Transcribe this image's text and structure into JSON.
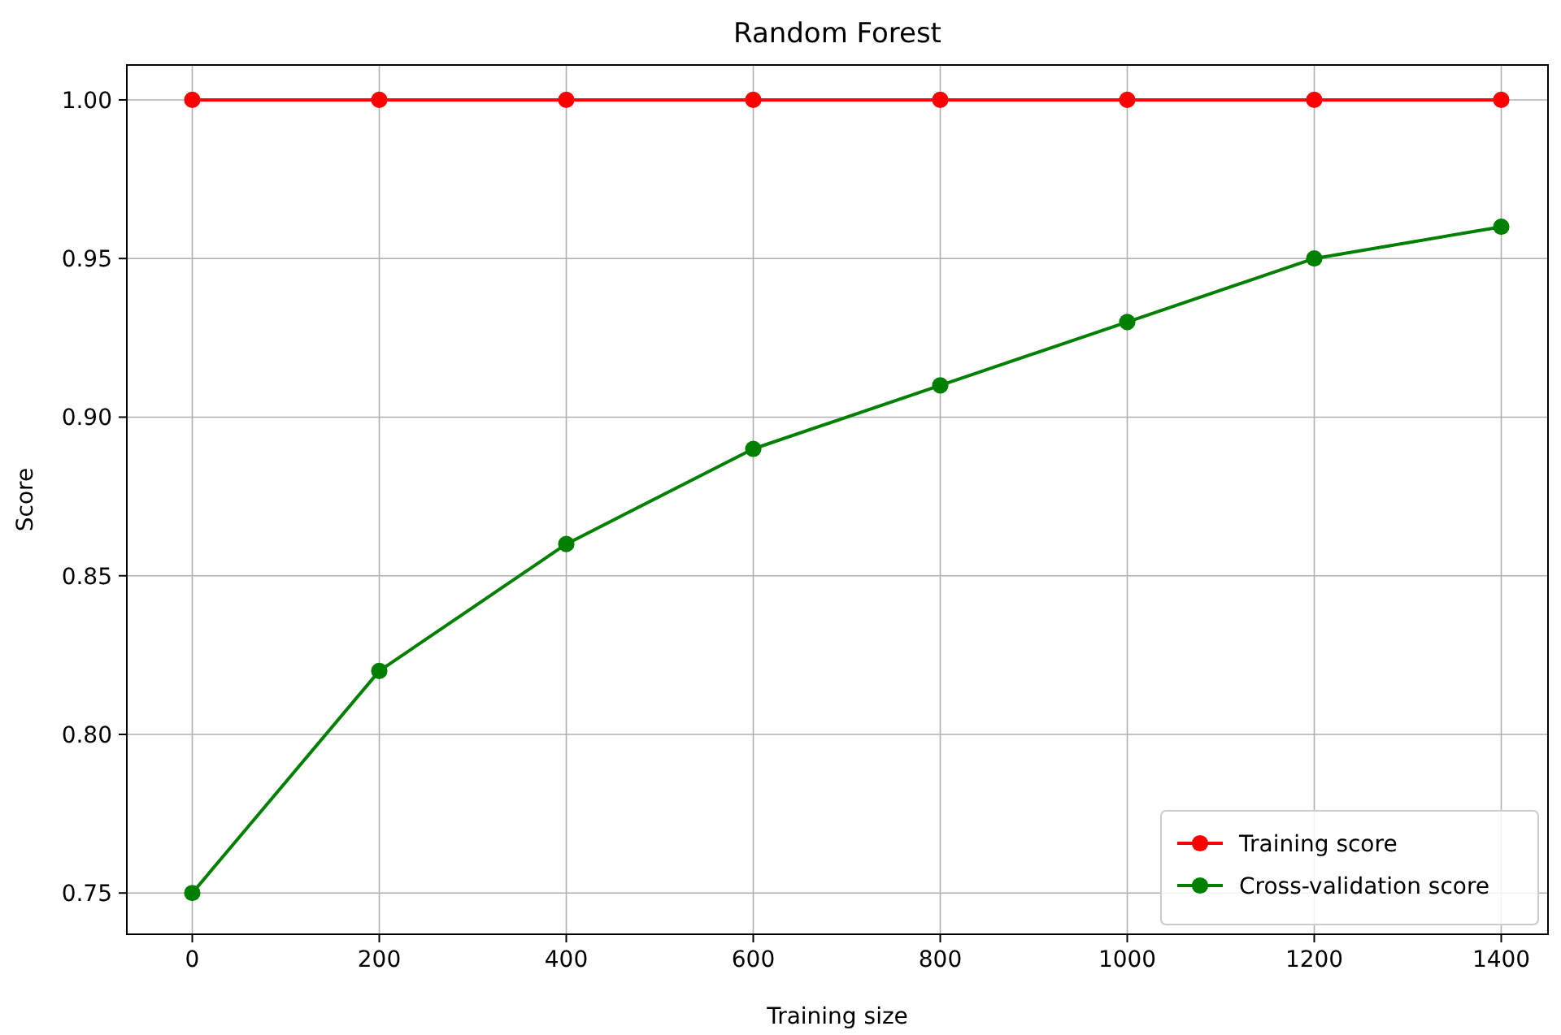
{
  "chart_data": {
    "type": "line",
    "title": "Random Forest",
    "xlabel": "Training size",
    "ylabel": "Score",
    "x": [
      0,
      200,
      400,
      600,
      800,
      1000,
      1200,
      1400
    ],
    "series": [
      {
        "name": "Training score",
        "color": "#ff0000",
        "values": [
          1.0,
          1.0,
          1.0,
          1.0,
          1.0,
          1.0,
          1.0,
          1.0
        ]
      },
      {
        "name": "Cross-validation score",
        "color": "#008000",
        "values": [
          0.75,
          0.82,
          0.86,
          0.89,
          0.91,
          0.93,
          0.95,
          0.96
        ]
      }
    ],
    "xlim": [
      -70,
      1450
    ],
    "ylim": [
      0.737,
      1.011
    ],
    "xticks": [
      0,
      200,
      400,
      600,
      800,
      1000,
      1200,
      1400
    ],
    "yticks": [
      {
        "value": 0.75,
        "label": "0.75"
      },
      {
        "value": 0.8,
        "label": "0.80"
      },
      {
        "value": 0.85,
        "label": "0.85"
      },
      {
        "value": 0.9,
        "label": "0.90"
      },
      {
        "value": 0.95,
        "label": "0.95"
      },
      {
        "value": 1.0,
        "label": "1.00"
      }
    ],
    "grid": true,
    "legend": "bottom right",
    "marker": "circle",
    "line_style": "solid"
  }
}
